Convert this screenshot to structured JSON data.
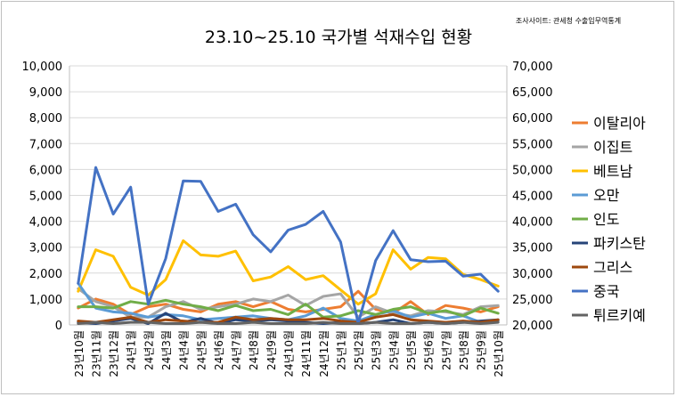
{
  "chart_data": {
    "type": "line",
    "title": "23.10~25.10 국가별 석재수입 현황",
    "source_note": "조사사이트: 관세청 수출입무역통계",
    "categories": [
      "23년10월",
      "23년11월",
      "23년12월",
      "24년1월",
      "24년2월",
      "24년3월",
      "24년4월",
      "24년5월",
      "24년6월",
      "24년7월",
      "24년8월",
      "24년9월",
      "24년10월",
      "24년11월",
      "24년12월",
      "25년1월",
      "25년2월",
      "25년3월",
      "25년4월",
      "25년5월",
      "25년6월",
      "25년7월",
      "25년8월",
      "25년9월",
      "25년10월"
    ],
    "ylim_left": [
      0,
      10000
    ],
    "yticks_left": [
      "0",
      "1,000",
      "2,000",
      "3,000",
      "4,000",
      "5,000",
      "6,000",
      "7,000",
      "8,000",
      "9,000",
      "10,000"
    ],
    "ylim_right": [
      20000,
      70000
    ],
    "yticks_right": [
      "20,000",
      "25,000",
      "30,000",
      "35,000",
      "40,000",
      "45,000",
      "50,000",
      "55,000",
      "60,000",
      "65,000",
      "70,000"
    ],
    "grid": true,
    "legend_position": "right",
    "series": [
      {
        "name": "이탈리아",
        "color": "#ed7d31",
        "axis": "left",
        "values": [
          650,
          1000,
          800,
          400,
          700,
          800,
          600,
          500,
          800,
          900,
          700,
          900,
          600,
          500,
          600,
          700,
          1300,
          600,
          450,
          900,
          400,
          750,
          650,
          500,
          700
        ]
      },
      {
        "name": "이집트",
        "color": "#a5a5a5",
        "axis": "left",
        "values": [
          1400,
          900,
          700,
          300,
          300,
          700,
          900,
          600,
          700,
          800,
          1000,
          900,
          1150,
          750,
          1100,
          1200,
          300,
          700,
          450,
          350,
          550,
          500,
          400,
          700,
          750
        ]
      },
      {
        "name": "베트남",
        "color": "#ffc000",
        "axis": "left",
        "values": [
          1300,
          2900,
          2650,
          1450,
          1150,
          1750,
          3250,
          2700,
          2650,
          2850,
          1700,
          1850,
          2250,
          1750,
          1900,
          1350,
          800,
          1200,
          2900,
          2150,
          2600,
          2550,
          1950,
          1750,
          1500
        ]
      },
      {
        "name": "오만",
        "color": "#5b9bd5",
        "axis": "left",
        "values": [
          1600,
          650,
          500,
          450,
          300,
          400,
          350,
          200,
          250,
          300,
          350,
          250,
          200,
          350,
          650,
          250,
          150,
          400,
          550,
          300,
          450,
          250,
          350,
          100,
          150
        ]
      },
      {
        "name": "인도",
        "color": "#70ad47",
        "axis": "left",
        "values": [
          700,
          700,
          650,
          900,
          800,
          950,
          800,
          700,
          550,
          750,
          550,
          600,
          400,
          800,
          300,
          350,
          550,
          400,
          600,
          700,
          450,
          550,
          350,
          650,
          450
        ]
      },
      {
        "name": "파키스탄",
        "color": "#264478",
        "axis": "left",
        "values": [
          100,
          50,
          150,
          250,
          50,
          450,
          100,
          250,
          50,
          200,
          150,
          200,
          150,
          100,
          50,
          100,
          50,
          100,
          200,
          50,
          100,
          50,
          100,
          150,
          200
        ]
      },
      {
        "name": "그리스",
        "color": "#9e480e",
        "axis": "left",
        "values": [
          150,
          100,
          200,
          300,
          100,
          200,
          150,
          100,
          100,
          300,
          200,
          250,
          200,
          200,
          250,
          150,
          100,
          300,
          400,
          200,
          150,
          100,
          150,
          100,
          200
        ]
      },
      {
        "name": "중국",
        "color": "#4472c4",
        "axis": "right",
        "values": [
          28000,
          50400,
          41400,
          46600,
          24000,
          32800,
          47800,
          47700,
          41900,
          43300,
          37400,
          34100,
          38300,
          39400,
          41900,
          36000,
          20300,
          32400,
          38200,
          32600,
          32200,
          32300,
          29400,
          29800,
          26500
        ]
      },
      {
        "name": "튀르키예",
        "color": "#636363",
        "axis": "left",
        "values": [
          50,
          100,
          50,
          100,
          100,
          50,
          50,
          100,
          50,
          50,
          100,
          50,
          50,
          50,
          100,
          50,
          50,
          100,
          50,
          50,
          100,
          50,
          100,
          50,
          100
        ]
      }
    ]
  }
}
